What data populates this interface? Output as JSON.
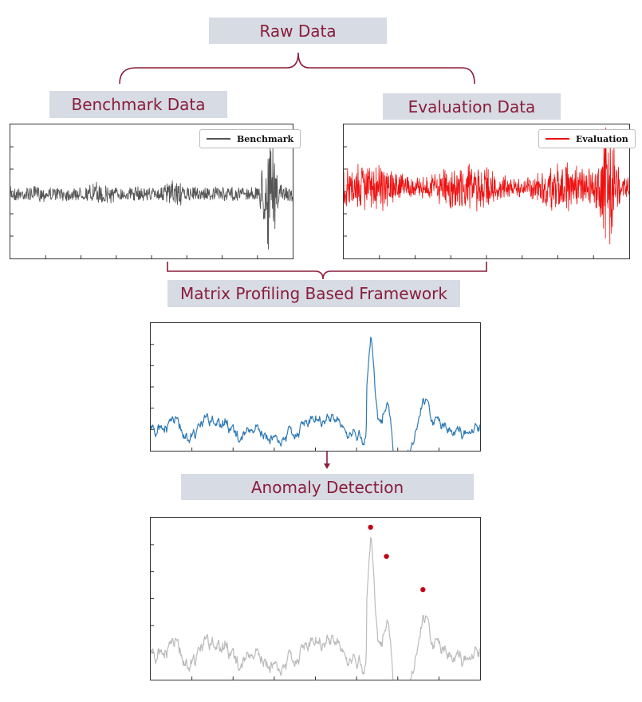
{
  "labels": {
    "raw_data": "Raw Data",
    "benchmark_data": "Benchmark Data",
    "evaluation_data": "Evaluation Data",
    "framework": "Matrix Profiling Based Framework",
    "anomaly_detection": "Anomaly Detection"
  },
  "benchmark_plot": {
    "legend": "Benchmark",
    "color": "#555555"
  },
  "evaluation_plot": {
    "legend": "Evaluation",
    "color": "#ee1111"
  },
  "matrix_profile_plot": {
    "color": "#2f7ab5"
  },
  "anomaly_plot": {
    "color": "#bbbbbb",
    "marker_color": "#c00018"
  },
  "colors": {
    "accent": "#8a1d3a",
    "label_bg": "#d6dbe4"
  }
}
